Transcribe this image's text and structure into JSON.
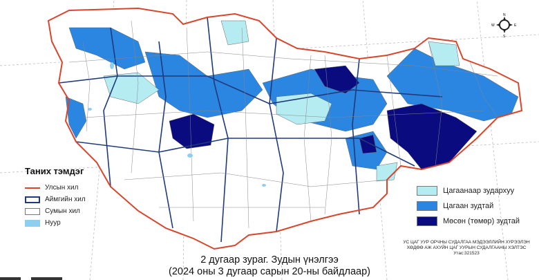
{
  "legend_left": {
    "title": "Таних тэмдэг",
    "items": [
      {
        "label": "Улсын хил",
        "color": "#d9452b"
      },
      {
        "label": "Аймгийн хил",
        "color": "#1f3a7a"
      },
      {
        "label": "Сумын хил",
        "color": "#777777"
      },
      {
        "label": "Нуур",
        "color": "#8ccff0"
      }
    ]
  },
  "legend_right": {
    "items": [
      {
        "label": "Цагаанаар зудархуу",
        "color": "#b4ecf2"
      },
      {
        "label": "Цагаан зудтай",
        "color": "#2a86e0"
      },
      {
        "label": "Мөсөн (төмөр) зудтай",
        "color": "#0b0b80"
      }
    ]
  },
  "organization": {
    "line1": "УС ЦАГ УУР ОРЧНЫ СУДАЛГАА МЭДЭЭЛЛИЙН ХҮРЭЭЛЭН",
    "line2": "ХӨДӨӨ АЖ АХУЙН ЦАГ УУРЫН СУДАЛГААНЫ ХЭЛТЭС",
    "phone": "Утас:321523"
  },
  "caption": {
    "line1": "2 дугаар зураг. Зудын үнэлгээ",
    "line2": "(2024 оны 3 дугаар сарын 20-ны байдлаар)"
  },
  "compass": {
    "n": "N",
    "s": "S",
    "e": "E",
    "w": "W"
  }
}
